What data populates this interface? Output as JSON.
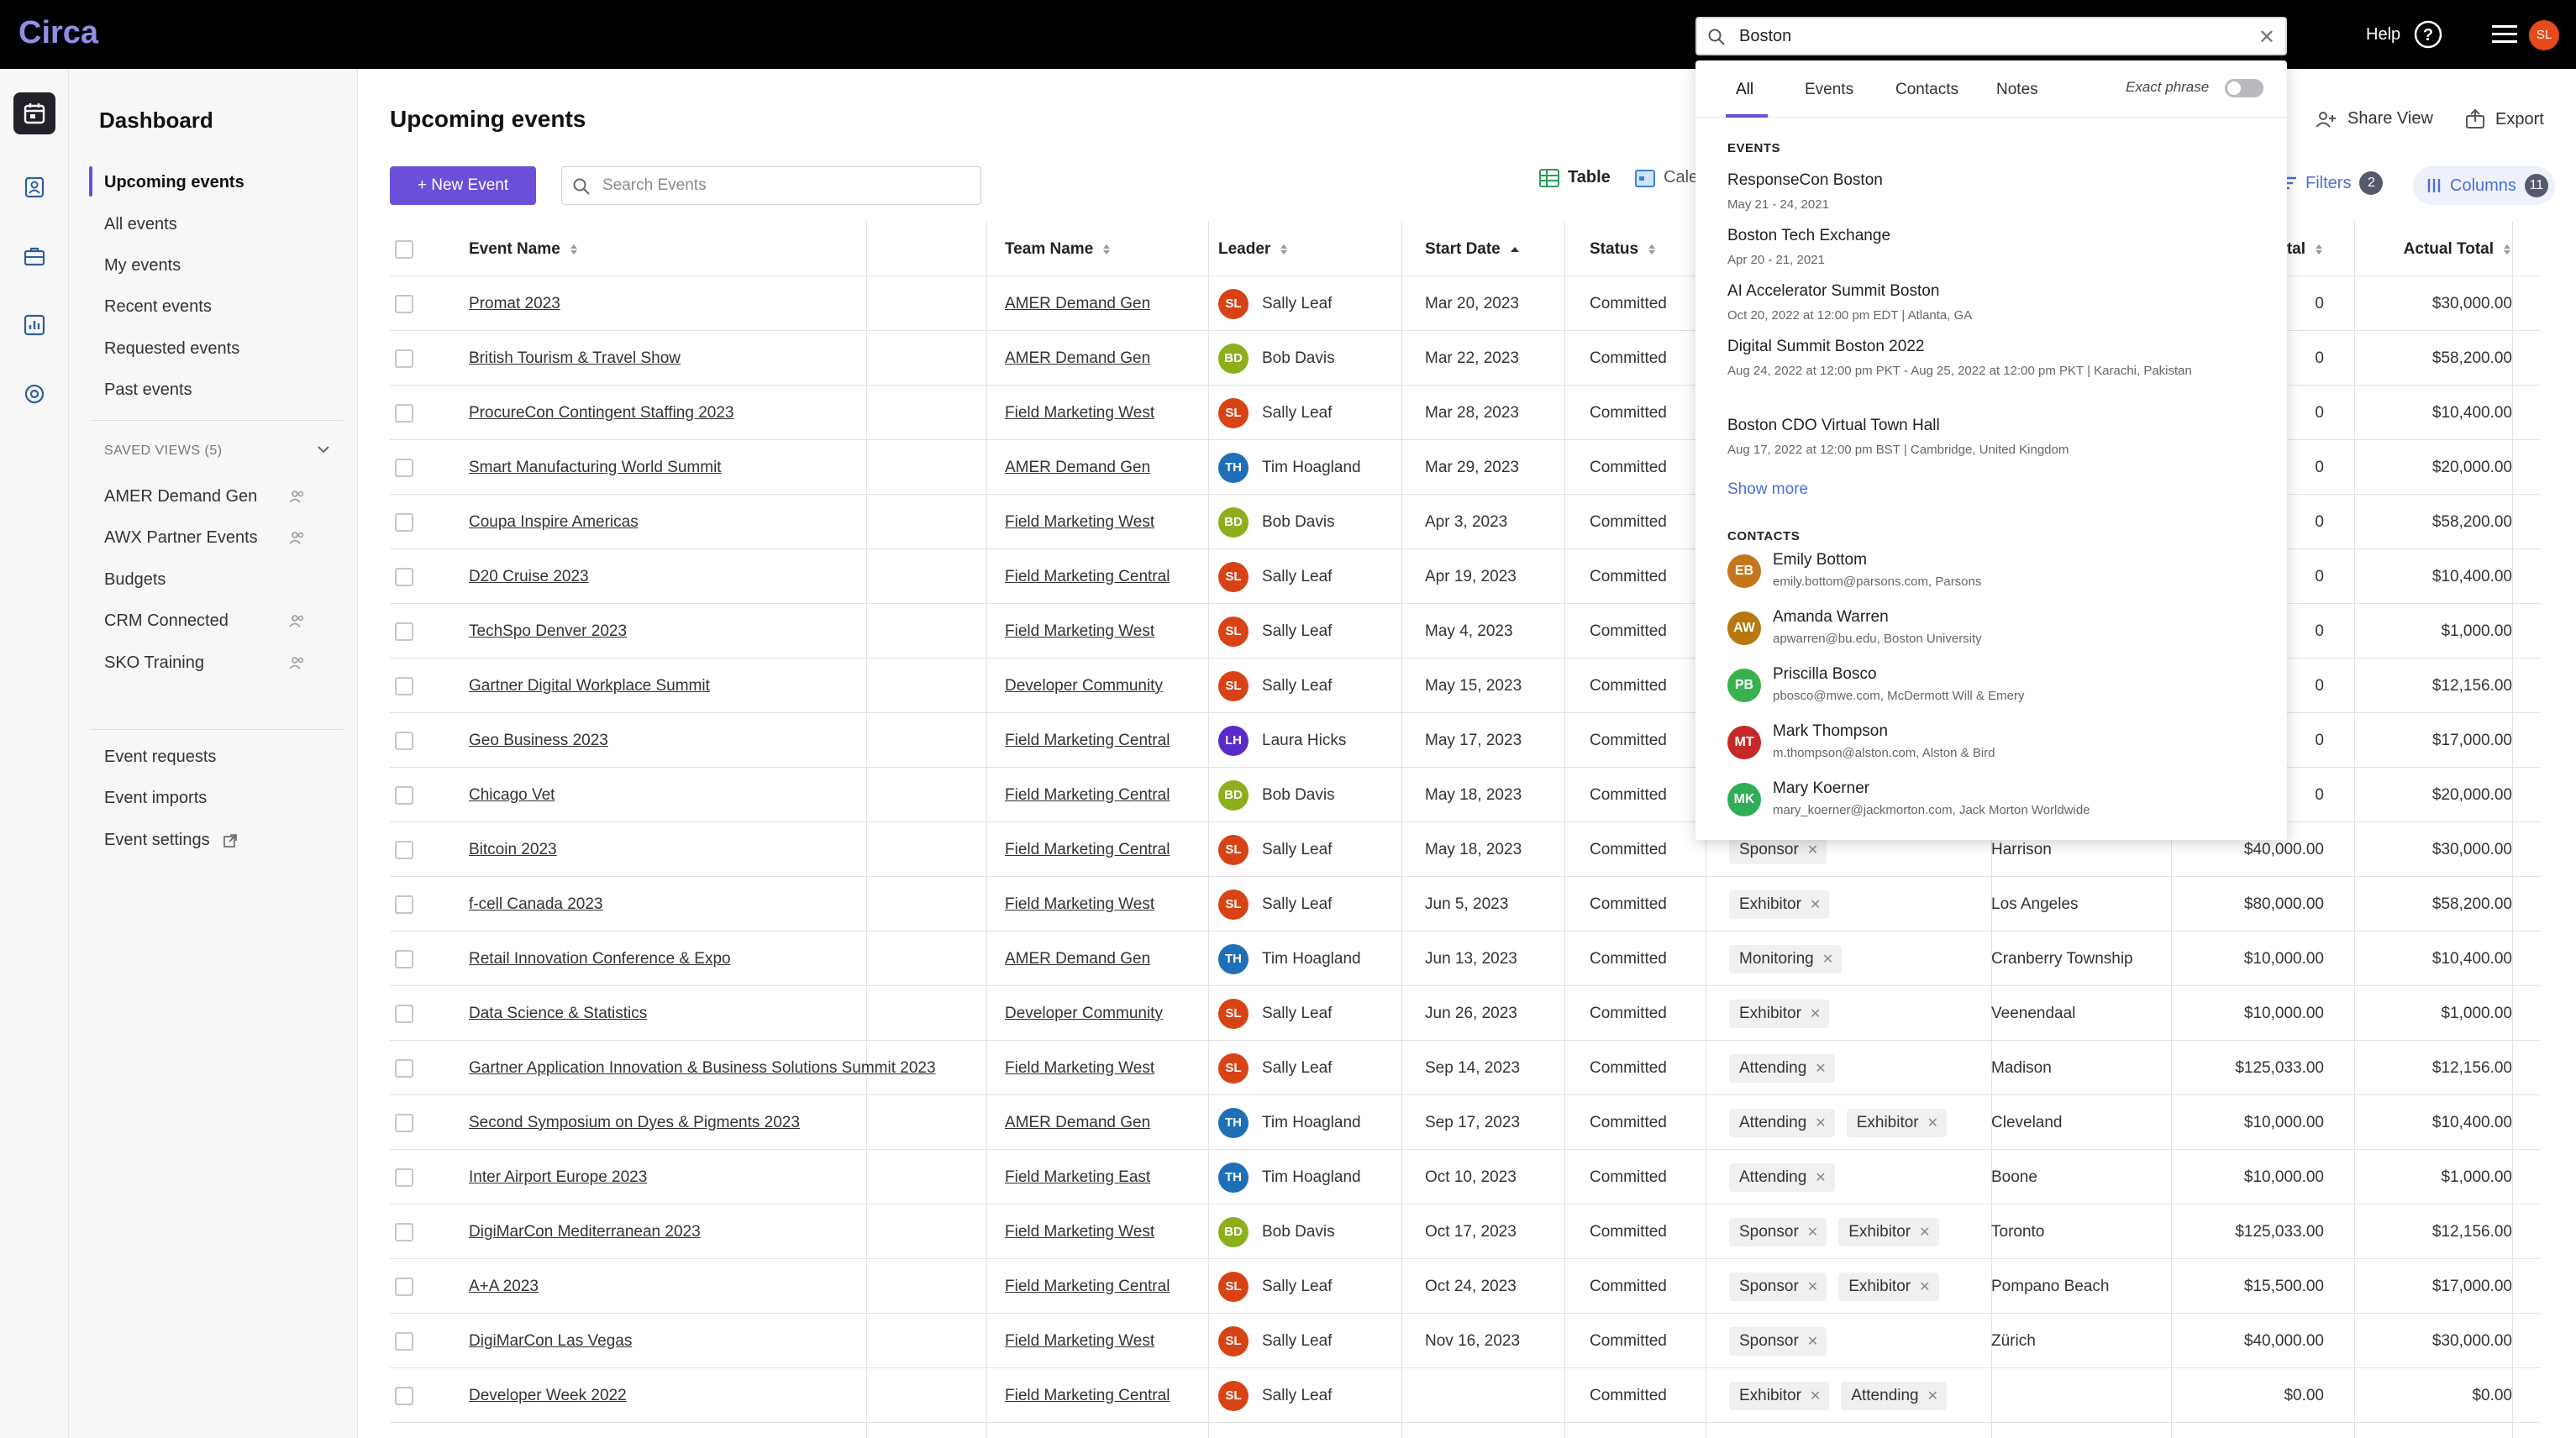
{
  "app": {
    "logo": "Circa"
  },
  "topbar": {
    "search_value": "Boston",
    "help_label": "Help",
    "user_initials": "SL"
  },
  "sidebar": {
    "title": "Dashboard",
    "nav": [
      "Upcoming events",
      "All events",
      "My events",
      "Recent events",
      "Requested events",
      "Past events"
    ],
    "saved_views_label": "SAVED VIEWS (5)",
    "saved_views": [
      "AMER Demand Gen",
      "AWX Partner Events",
      "Budgets",
      "CRM Connected",
      "SKO Training"
    ],
    "bottom": [
      "Event requests",
      "Event imports",
      "Event settings"
    ]
  },
  "main": {
    "title": "Upcoming events",
    "new_event_label": "+ New Event",
    "search_placeholder": "Search Events",
    "view_table": "Table",
    "view_calendar": "Cale",
    "share_view": "Share View",
    "export": "Export",
    "filters_label": "Filters",
    "filters_count": "2",
    "columns_label": "Columns",
    "columns_count": "11"
  },
  "table": {
    "headers": {
      "event_name": "Event Name",
      "team_name": "Team Name",
      "leader": "Leader",
      "start_date": "Start Date",
      "status": "Status",
      "total": "Total",
      "actual_total": "Actual Total"
    },
    "rows": [
      {
        "event": "Promat 2023",
        "team": "AMER Demand Gen",
        "leader": "Sally Leaf",
        "init": "SL",
        "date": "Mar 20, 2023",
        "status": "Committed",
        "tags": [],
        "city": "",
        "total": "0",
        "actual": "$30,000.00"
      },
      {
        "event": "British Tourism & Travel Show",
        "team": "AMER Demand Gen",
        "leader": "Bob Davis",
        "init": "BD",
        "date": "Mar 22, 2023",
        "status": "Committed",
        "tags": [],
        "city": "",
        "total": "0",
        "actual": "$58,200.00"
      },
      {
        "event": "ProcureCon Contingent Staffing 2023",
        "team": "Field Marketing West",
        "leader": "Sally Leaf",
        "init": "SL",
        "date": "Mar 28, 2023",
        "status": "Committed",
        "tags": [],
        "city": "",
        "total": "0",
        "actual": "$10,400.00"
      },
      {
        "event": "Smart Manufacturing World Summit",
        "team": "AMER Demand Gen",
        "leader": "Tim Hoagland",
        "init": "TH",
        "date": "Mar 29, 2023",
        "status": "Committed",
        "tags": [],
        "city": "",
        "total": "0",
        "actual": "$20,000.00"
      },
      {
        "event": "Coupa Inspire Americas",
        "team": "Field Marketing West",
        "leader": "Bob Davis",
        "init": "BD",
        "date": "Apr 3, 2023",
        "status": "Committed",
        "tags": [],
        "city": "",
        "total": "0",
        "actual": "$58,200.00"
      },
      {
        "event": "D20 Cruise 2023",
        "team": "Field Marketing Central",
        "leader": "Sally Leaf",
        "init": "SL",
        "date": "Apr 19, 2023",
        "status": "Committed",
        "tags": [],
        "city": "",
        "total": "0",
        "actual": "$10,400.00"
      },
      {
        "event": "TechSpo Denver 2023",
        "team": "Field Marketing West",
        "leader": "Sally Leaf",
        "init": "SL",
        "date": "May 4, 2023",
        "status": "Committed",
        "tags": [],
        "city": "",
        "total": "0",
        "actual": "$1,000.00"
      },
      {
        "event": "Gartner Digital Workplace Summit",
        "team": "Developer Community",
        "leader": "Sally Leaf",
        "init": "SL",
        "date": "May 15, 2023",
        "status": "Committed",
        "tags": [],
        "city": "",
        "total": "0",
        "actual": "$12,156.00"
      },
      {
        "event": "Geo Business 2023",
        "team": "Field Marketing Central",
        "leader": "Laura Hicks",
        "init": "LH",
        "date": "May 17, 2023",
        "status": "Committed",
        "tags": [],
        "city": "",
        "total": "0",
        "actual": "$17,000.00"
      },
      {
        "event": "Chicago Vet",
        "team": "Field Marketing Central",
        "leader": "Bob Davis",
        "init": "BD",
        "date": "May 18, 2023",
        "status": "Committed",
        "tags": [],
        "city": "",
        "total": "0",
        "actual": "$20,000.00"
      },
      {
        "event": "Bitcoin 2023",
        "team": "Field Marketing Central",
        "leader": "Sally Leaf",
        "init": "SL",
        "date": "May 18, 2023",
        "status": "Committed",
        "tags": [
          "Sponsor"
        ],
        "city": "Harrison",
        "total": "$40,000.00",
        "actual": "$30,000.00"
      },
      {
        "event": "f-cell Canada 2023",
        "team": "Field Marketing West",
        "leader": "Sally Leaf",
        "init": "SL",
        "date": "Jun 5, 2023",
        "status": "Committed",
        "tags": [
          "Exhibitor"
        ],
        "city": "Los Angeles",
        "total": "$80,000.00",
        "actual": "$58,200.00"
      },
      {
        "event": "Retail Innovation Conference & Expo",
        "team": "AMER Demand Gen",
        "leader": "Tim Hoagland",
        "init": "TH",
        "date": "Jun 13, 2023",
        "status": "Committed",
        "tags": [
          "Monitoring"
        ],
        "city": "Cranberry Township",
        "total": "$10,000.00",
        "actual": "$10,400.00"
      },
      {
        "event": "Data Science & Statistics",
        "team": "Developer Community",
        "leader": "Sally Leaf",
        "init": "SL",
        "date": "Jun 26, 2023",
        "status": "Committed",
        "tags": [
          "Exhibitor"
        ],
        "city": "Veenendaal",
        "total": "$10,000.00",
        "actual": "$1,000.00"
      },
      {
        "event": "Gartner Application Innovation & Business Solutions Summit 2023",
        "team": "Field Marketing West",
        "leader": "Sally Leaf",
        "init": "SL",
        "date": "Sep 14, 2023",
        "status": "Committed",
        "tags": [
          "Attending"
        ],
        "city": "Madison",
        "total": "$125,033.00",
        "actual": "$12,156.00"
      },
      {
        "event": "Second Symposium on Dyes & Pigments 2023",
        "team": "AMER Demand Gen",
        "leader": "Tim Hoagland",
        "init": "TH",
        "date": "Sep 17, 2023",
        "status": "Committed",
        "tags": [
          "Attending",
          "Exhibitor"
        ],
        "city": "Cleveland",
        "total": "$10,000.00",
        "actual": "$10,400.00"
      },
      {
        "event": "Inter Airport Europe 2023",
        "team": "Field Marketing East",
        "leader": "Tim Hoagland",
        "init": "TH",
        "date": "Oct 10, 2023",
        "status": "Committed",
        "tags": [
          "Attending"
        ],
        "city": "Boone",
        "total": "$10,000.00",
        "actual": "$1,000.00"
      },
      {
        "event": "DigiMarCon Mediterranean 2023",
        "team": "Field Marketing West",
        "leader": "Bob Davis",
        "init": "BD",
        "date": "Oct 17, 2023",
        "status": "Committed",
        "tags": [
          "Sponsor",
          "Exhibitor"
        ],
        "city": "Toronto",
        "total": "$125,033.00",
        "actual": "$12,156.00"
      },
      {
        "event": "A+A 2023",
        "team": "Field Marketing Central",
        "leader": "Sally Leaf",
        "init": "SL",
        "date": "Oct 24, 2023",
        "status": "Committed",
        "tags": [
          "Sponsor",
          "Exhibitor"
        ],
        "city": "Pompano Beach",
        "total": "$15,500.00",
        "actual": "$17,000.00"
      },
      {
        "event": "DigiMarCon Las Vegas",
        "team": "Field Marketing West",
        "leader": "Sally Leaf",
        "init": "SL",
        "date": "Nov 16, 2023",
        "status": "Committed",
        "tags": [
          "Sponsor"
        ],
        "city": "Zürich",
        "total": "$40,000.00",
        "actual": "$30,000.00"
      },
      {
        "event": "Developer Week 2022",
        "team": "Field Marketing Central",
        "leader": "Sally Leaf",
        "init": "SL",
        "date": "",
        "status": "Committed",
        "tags": [
          "Exhibitor",
          "Attending"
        ],
        "city": "",
        "total": "$0.00",
        "actual": "$0.00"
      }
    ]
  },
  "dropdown": {
    "tabs": [
      "All",
      "Events",
      "Contacts",
      "Notes"
    ],
    "exact_phrase": "Exact phrase",
    "events_label": "EVENTS",
    "events": [
      {
        "title": "ResponseCon Boston",
        "sub": "May 21 - 24, 2021"
      },
      {
        "title": "Boston Tech Exchange",
        "sub": "Apr 20 - 21, 2021"
      },
      {
        "title": "AI Accelerator Summit Boston",
        "sub": "Oct 20, 2022 at 12:00 pm EDT | Atlanta, GA"
      },
      {
        "title": "Digital Summit Boston 2022",
        "sub": "Aug 24, 2022 at 12:00 pm PKT - Aug 25, 2022 at 12:00 pm PKT | Karachi, Pakistan"
      },
      {
        "title": "Boston CDO Virtual Town Hall",
        "sub": "Aug 17, 2022 at 12:00 pm BST | Cambridge, United Kingdom"
      }
    ],
    "show_more": "Show more",
    "contacts_label": "CONTACTS",
    "contacts": [
      {
        "init": "EB",
        "name": "Emily Bottom",
        "sub": "emily.bottom@parsons.com, Parsons"
      },
      {
        "init": "AW",
        "name": "Amanda Warren",
        "sub": "apwarren@bu.edu, Boston University"
      },
      {
        "init": "PB",
        "name": "Priscilla Bosco",
        "sub": "pbosco@mwe.com, McDermott Will & Emery"
      },
      {
        "init": "MT",
        "name": "Mark Thompson",
        "sub": "m.thompson@alston.com, Alston & Bird"
      },
      {
        "init": "MK",
        "name": "Mary Koerner",
        "sub": "mary_koerner@jackmorton.com, Jack Morton Worldwide"
      }
    ]
  },
  "colors": {
    "accent": "#6b4fd8",
    "SL": "#d84315",
    "BD": "#8bb01c",
    "TH": "#1f6fb8",
    "LH": "#5b2bc9",
    "EB": "#c4761c",
    "AW": "#b8770f",
    "PB": "#37b24d",
    "MT": "#c62828",
    "MK": "#2fae55"
  }
}
